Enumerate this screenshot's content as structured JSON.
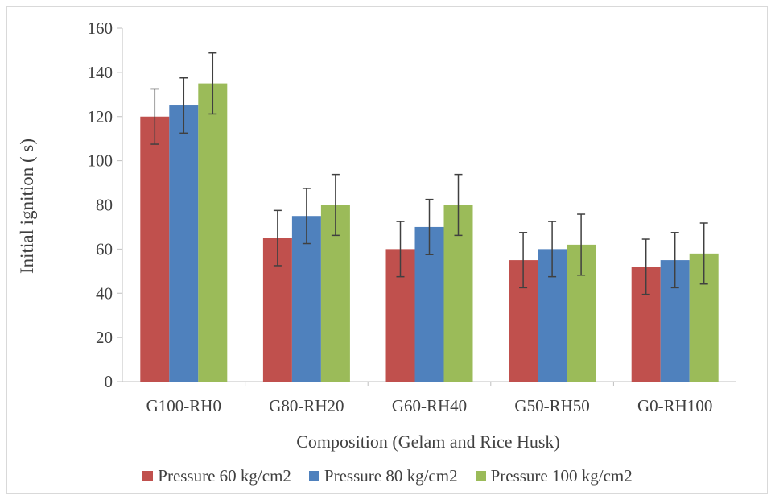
{
  "chart_data": {
    "type": "bar",
    "title": "",
    "xlabel": "Composition (Gelam and Rice Husk)",
    "ylabel": "Initial ignition ( s)",
    "ylim": [
      0,
      160
    ],
    "yticks": [
      0,
      20,
      40,
      60,
      80,
      100,
      120,
      140,
      160
    ],
    "grid": false,
    "legend_position": "bottom",
    "categories": [
      "G100-RH0",
      "G80-RH20",
      "G60-RH40",
      "G50-RH50",
      "G0-RH100"
    ],
    "series": [
      {
        "name": "Pressure 60 kg/cm2",
        "color": "#C0504D",
        "values": [
          120,
          65,
          60,
          55,
          52
        ],
        "errors": [
          12.5,
          12.5,
          12.5,
          12.5,
          12.5
        ]
      },
      {
        "name": "Pressure 80 kg/cm2",
        "color": "#4F81BD",
        "values": [
          125,
          75,
          70,
          60,
          55
        ],
        "errors": [
          12.5,
          12.5,
          12.5,
          12.5,
          12.5
        ]
      },
      {
        "name": "Pressure 100 kg/cm2",
        "color": "#9BBB59",
        "values": [
          135,
          80,
          80,
          62,
          58
        ],
        "errors": [
          13.8,
          13.8,
          13.8,
          13.8,
          13.8
        ]
      }
    ]
  }
}
